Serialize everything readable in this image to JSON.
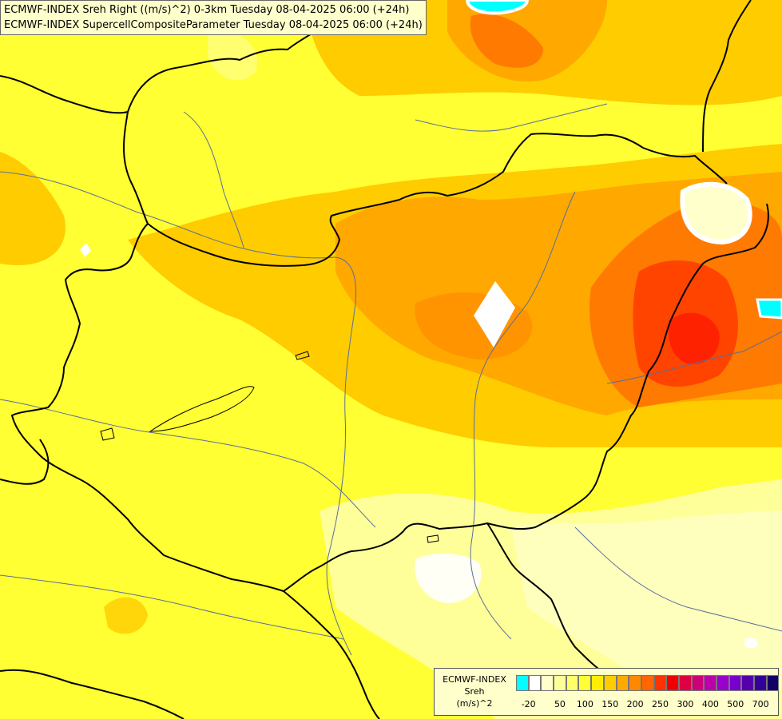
{
  "title_lines": [
    "ECMWF-INDEX Sreh Right ((m/s)^2) 0-3km Tuesday 08-04-2025 06:00 (+24h)",
    "ECMWF-INDEX SupercellCompositeParameter Tuesday 08-04-2025 06:00 (+24h)"
  ],
  "legend": {
    "name_lines": [
      "ECMWF-INDEX",
      "Sreh",
      "(m/s)^2"
    ],
    "colors": [
      "#00ffff",
      "#ffffff",
      "#ffffcc",
      "#ffff99",
      "#ffff66",
      "#ffff33",
      "#ffee00",
      "#ffcc00",
      "#ffaa00",
      "#ff8800",
      "#ff6600",
      "#ff3300",
      "#ee0000",
      "#dd0044",
      "#cc0077",
      "#bb00aa",
      "#9900cc",
      "#7700cc",
      "#5500aa",
      "#330099",
      "#110066"
    ],
    "labels": [
      "-20",
      "50",
      "100",
      "150",
      "200",
      "250",
      "300",
      "400",
      "500",
      "700"
    ]
  },
  "colors": {
    "base": "#ffff33",
    "light": "#ffff99",
    "pale": "#ffffcc",
    "gold": "#ffcc00",
    "orange": "#ffa800",
    "deep_orange": "#ff7a00",
    "red_orange": "#ff4400",
    "red": "#ff2200",
    "cyan": "#00ffff",
    "white": "#ffffff",
    "border": "#000000",
    "river": "#5a6e9a"
  }
}
